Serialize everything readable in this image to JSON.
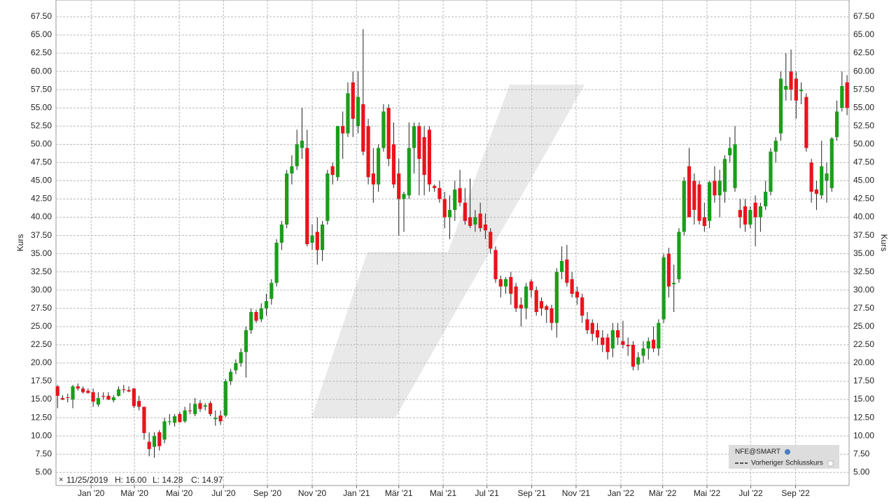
{
  "chart_data": {
    "type": "candlestick",
    "y_label": "Kurs",
    "up_color": "#1a9e1a",
    "down_color": "#e8141c",
    "grid": true,
    "legend": {
      "name": "NFE@SMART",
      "reference": "Vorheriger Schlusskurs",
      "corner": "bottom-right"
    },
    "info": {
      "date": "11/25/2019",
      "high": "H: 16.00",
      "low": "L: 14.28",
      "close": "C: 14.97"
    },
    "xlim": [
      -0.3,
      155.4
    ],
    "xticks": [
      {
        "value": 6.6,
        "label": "Jan '20"
      },
      {
        "value": 15.1,
        "label": "Mär '20"
      },
      {
        "value": 23.9,
        "label": "Mai '20"
      },
      {
        "value": 32.6,
        "label": "Jul '20"
      },
      {
        "value": 41.2,
        "label": "Sep '20"
      },
      {
        "value": 50.0,
        "label": "Nov '20"
      },
      {
        "value": 58.7,
        "label": "Jan '21"
      },
      {
        "value": 67.0,
        "label": "Mär '21"
      },
      {
        "value": 75.7,
        "label": "Mai '21"
      },
      {
        "value": 84.3,
        "label": "Jul '21"
      },
      {
        "value": 93.1,
        "label": "Sep '21"
      },
      {
        "value": 101.8,
        "label": "Nov '21"
      },
      {
        "value": 110.6,
        "label": "Jan '22"
      },
      {
        "value": 118.8,
        "label": "Mär '22"
      },
      {
        "value": 127.5,
        "label": "Mai '22"
      },
      {
        "value": 136.1,
        "label": "Jul '22"
      },
      {
        "value": 144.9,
        "label": "Sep '22"
      }
    ],
    "ylim": [
      3.2,
      69.8
    ],
    "yticks": [
      {
        "value": 5,
        "label": "5.00"
      },
      {
        "value": 7.5,
        "label": "7.50"
      },
      {
        "value": 10,
        "label": "10.00"
      },
      {
        "value": 12.5,
        "label": "12.50"
      },
      {
        "value": 15,
        "label": "15.00"
      },
      {
        "value": 17.5,
        "label": "17.50"
      },
      {
        "value": 20,
        "label": "20.00"
      },
      {
        "value": 22.5,
        "label": "22.50"
      },
      {
        "value": 25,
        "label": "25.00"
      },
      {
        "value": 27.5,
        "label": "27.50"
      },
      {
        "value": 30,
        "label": "30.00"
      },
      {
        "value": 32.5,
        "label": "32.50"
      },
      {
        "value": 35,
        "label": "35.00"
      },
      {
        "value": 37.5,
        "label": "37.50"
      },
      {
        "value": 40,
        "label": "40.00"
      },
      {
        "value": 42.5,
        "label": "42.50"
      },
      {
        "value": 45,
        "label": "45.00"
      },
      {
        "value": 47.5,
        "label": "47.50"
      },
      {
        "value": 50,
        "label": "50.00"
      },
      {
        "value": 52.5,
        "label": "52.50"
      },
      {
        "value": 55,
        "label": "55.00"
      },
      {
        "value": 57.5,
        "label": "57.50"
      },
      {
        "value": 60,
        "label": "60.00"
      },
      {
        "value": 62.5,
        "label": "62.50"
      },
      {
        "value": 65,
        "label": "65.00"
      },
      {
        "value": 67.5,
        "label": "67.50"
      }
    ],
    "ohlc": [
      [
        16.8,
        17.0,
        13.8,
        15.5
      ],
      [
        15.2,
        15.6,
        14.9,
        15.0
      ],
      [
        15.3,
        15.8,
        14.6,
        15.2
      ],
      [
        15.0,
        17.0,
        13.8,
        16.8
      ],
      [
        16.8,
        17.2,
        16.2,
        16.5
      ],
      [
        16.5,
        16.8,
        15.8,
        16.0
      ],
      [
        16.2,
        16.5,
        15.8,
        15.9
      ],
      [
        16.0,
        16.5,
        14.0,
        14.7
      ],
      [
        14.3,
        16.0,
        14.0,
        15.2
      ],
      [
        15.5,
        16.0,
        15.0,
        15.4
      ],
      [
        15.5,
        16.0,
        14.9,
        15.0
      ],
      [
        14.9,
        15.6,
        14.6,
        15.3
      ],
      [
        15.5,
        16.8,
        15.4,
        16.4
      ],
      [
        16.4,
        17.0,
        15.9,
        16.3
      ],
      [
        16.3,
        16.8,
        16.0,
        16.1
      ],
      [
        16.5,
        16.6,
        13.8,
        14.1
      ],
      [
        14.8,
        15.5,
        13.5,
        14.0
      ],
      [
        14.0,
        14.0,
        9.5,
        10.4
      ],
      [
        9.2,
        10.5,
        7.2,
        8.2
      ],
      [
        8.5,
        10.5,
        7.0,
        10.0
      ],
      [
        10.5,
        10.8,
        8.0,
        8.6
      ],
      [
        9.5,
        12.5,
        9.0,
        12.0
      ],
      [
        12.0,
        13.0,
        11.5,
        12.0
      ],
      [
        11.8,
        13.0,
        11.3,
        12.7
      ],
      [
        13.0,
        13.3,
        11.8,
        11.9
      ],
      [
        12.0,
        14.0,
        11.8,
        13.5
      ],
      [
        13.5,
        14.5,
        13.0,
        13.4
      ],
      [
        13.0,
        15.2,
        12.7,
        14.4
      ],
      [
        14.5,
        14.9,
        13.3,
        13.7
      ],
      [
        14.0,
        14.5,
        13.5,
        14.2
      ],
      [
        14.5,
        14.8,
        12.7,
        13.0
      ],
      [
        12.3,
        13.5,
        11.4,
        12.5
      ],
      [
        12.8,
        13.5,
        11.5,
        12.0
      ],
      [
        12.8,
        17.8,
        12.6,
        17.5
      ],
      [
        17.5,
        19.2,
        17.0,
        18.8
      ],
      [
        19.0,
        20.5,
        18.5,
        20.0
      ],
      [
        20.0,
        22.0,
        19.5,
        21.5
      ],
      [
        21.5,
        25.0,
        18.0,
        24.5
      ],
      [
        24.5,
        27.5,
        24.0,
        27.0
      ],
      [
        27.0,
        27.3,
        25.5,
        25.8
      ],
      [
        26.0,
        28.2,
        25.6,
        27.5
      ],
      [
        27.5,
        29.5,
        26.5,
        28.5
      ],
      [
        28.8,
        31.5,
        28.0,
        31.0
      ],
      [
        31.0,
        37.0,
        30.5,
        36.5
      ],
      [
        36.5,
        39.5,
        35.5,
        39.0
      ],
      [
        39.0,
        46.5,
        38.5,
        46.0
      ],
      [
        46.0,
        48.5,
        44.5,
        47.0
      ],
      [
        47.0,
        52.0,
        46.5,
        50.0
      ],
      [
        49.5,
        55.0,
        48.0,
        50.5
      ],
      [
        49.5,
        52.0,
        36.0,
        36.3
      ],
      [
        36.5,
        39.0,
        35.5,
        37.5
      ],
      [
        38.0,
        40.0,
        33.5,
        35.5
      ],
      [
        35.5,
        39.5,
        34.0,
        39.0
      ],
      [
        39.5,
        46.5,
        39.0,
        46.0
      ],
      [
        47.0,
        47.5,
        44.5,
        45.8
      ],
      [
        45.5,
        52.5,
        45.0,
        52.5
      ],
      [
        52.5,
        54.5,
        48.0,
        51.5
      ],
      [
        51.5,
        58.5,
        51.0,
        57.0
      ],
      [
        58.5,
        60.0,
        51.0,
        53.5
      ],
      [
        52.5,
        60.0,
        51.5,
        56.5
      ],
      [
        55.5,
        65.8,
        48.5,
        49.0
      ],
      [
        52.5,
        53.5,
        44.5,
        45.5
      ],
      [
        46.0,
        49.5,
        42.0,
        44.5
      ],
      [
        44.5,
        50.0,
        43.5,
        49.5
      ],
      [
        49.5,
        55.5,
        49.0,
        54.5
      ],
      [
        55.0,
        55.5,
        47.0,
        48.0
      ],
      [
        50.0,
        53.0,
        44.0,
        44.5
      ],
      [
        46.0,
        48.0,
        37.5,
        42.5
      ],
      [
        42.5,
        43.5,
        38.0,
        43.2
      ],
      [
        43.0,
        53.0,
        42.5,
        49.5
      ],
      [
        49.5,
        53.0,
        46.0,
        52.5
      ],
      [
        52.5,
        53.0,
        43.0,
        48.0
      ],
      [
        51.0,
        52.5,
        43.0,
        45.8
      ],
      [
        52.0,
        52.5,
        43.5,
        44.5
      ],
      [
        44.3,
        44.5,
        43.5,
        44.0
      ],
      [
        44.0,
        45.0,
        42.0,
        42.5
      ],
      [
        42.5,
        43.5,
        38.5,
        40.0
      ],
      [
        40.0,
        43.0,
        37.0,
        41.0
      ],
      [
        41.0,
        45.0,
        39.5,
        43.8
      ],
      [
        44.0,
        46.5,
        41.5,
        42.0
      ],
      [
        42.0,
        44.0,
        39.0,
        39.5
      ],
      [
        40.0,
        45.3,
        38.5,
        38.8
      ],
      [
        39.0,
        41.0,
        38.0,
        40.0
      ],
      [
        40.5,
        42.0,
        38.0,
        38.5
      ],
      [
        39.0,
        40.5,
        37.0,
        38.2
      ],
      [
        38.0,
        38.5,
        35.0,
        35.7
      ],
      [
        35.5,
        36.0,
        31.0,
        31.5
      ],
      [
        31.5,
        32.0,
        29.0,
        30.5
      ],
      [
        30.5,
        31.8,
        29.5,
        31.5
      ],
      [
        31.8,
        32.5,
        28.0,
        29.5
      ],
      [
        30.5,
        31.0,
        27.0,
        27.5
      ],
      [
        28.0,
        29.0,
        25.0,
        27.5
      ],
      [
        27.5,
        31.0,
        26.0,
        30.5
      ],
      [
        31.2,
        31.5,
        29.0,
        30.0
      ],
      [
        30.0,
        30.5,
        26.5,
        27.0
      ],
      [
        28.5,
        29.0,
        26.5,
        27.5
      ],
      [
        27.8,
        28.0,
        25.5,
        27.3
      ],
      [
        27.5,
        28.0,
        24.5,
        25.5
      ],
      [
        25.5,
        33.0,
        23.5,
        32.5
      ],
      [
        32.5,
        36.0,
        31.5,
        34.0
      ],
      [
        34.2,
        36.2,
        30.5,
        31.0
      ],
      [
        31.5,
        32.5,
        29.0,
        29.5
      ],
      [
        29.8,
        30.5,
        28.0,
        29.0
      ],
      [
        29.0,
        29.5,
        25.5,
        26.5
      ],
      [
        26.0,
        27.0,
        24.0,
        24.5
      ],
      [
        25.5,
        26.0,
        23.0,
        24.0
      ],
      [
        24.5,
        25.5,
        22.5,
        23.5
      ],
      [
        23.5,
        24.5,
        21.5,
        22.5
      ],
      [
        23.5,
        24.0,
        20.5,
        21.5
      ],
      [
        22.0,
        25.5,
        20.8,
        24.5
      ],
      [
        24.5,
        25.5,
        22.5,
        23.5
      ],
      [
        23.0,
        25.8,
        22.0,
        22.5
      ],
      [
        22.5,
        23.5,
        21.0,
        22.3
      ],
      [
        22.5,
        23.0,
        19.0,
        19.5
      ],
      [
        19.8,
        21.5,
        19.0,
        20.8
      ],
      [
        21.0,
        23.0,
        20.0,
        22.0
      ],
      [
        22.0,
        23.5,
        20.5,
        23.0
      ],
      [
        23.2,
        25.0,
        21.5,
        22.0
      ],
      [
        22.0,
        26.0,
        21.0,
        25.5
      ],
      [
        26.0,
        35.0,
        25.5,
        34.5
      ],
      [
        35.0,
        35.8,
        29.0,
        30.5
      ],
      [
        30.8,
        33.5,
        27.0,
        31.0
      ],
      [
        31.5,
        38.5,
        31.0,
        38.0
      ],
      [
        38.0,
        45.5,
        37.5,
        45.0
      ],
      [
        47.0,
        49.5,
        40.0,
        40.0
      ],
      [
        45.0,
        46.0,
        39.0,
        41.0
      ],
      [
        44.5,
        45.0,
        39.0,
        39.5
      ],
      [
        40.0,
        42.0,
        38.0,
        38.8
      ],
      [
        39.5,
        45.0,
        38.5,
        44.8
      ],
      [
        45.0,
        47.0,
        42.0,
        43.0
      ],
      [
        43.0,
        46.5,
        40.0,
        45.0
      ],
      [
        43.5,
        48.5,
        42.0,
        48.0
      ],
      [
        48.5,
        51.0,
        47.5,
        49.5
      ],
      [
        44.0,
        52.5,
        43.5,
        50.0
      ],
      [
        41.0,
        42.5,
        38.5,
        40.0
      ],
      [
        41.5,
        42.5,
        38.0,
        39.0
      ],
      [
        39.0,
        41.5,
        38.5,
        41.0
      ],
      [
        42.0,
        43.0,
        36.0,
        40.0
      ],
      [
        40.0,
        42.0,
        38.0,
        41.5
      ],
      [
        41.5,
        45.0,
        41.0,
        43.5
      ],
      [
        43.5,
        49.5,
        43.0,
        49.0
      ],
      [
        49.0,
        51.0,
        47.5,
        50.5
      ],
      [
        51.5,
        60.0,
        50.5,
        59.0
      ],
      [
        57.5,
        62.5,
        56.0,
        58.0
      ],
      [
        60.0,
        63.0,
        56.0,
        57.5
      ],
      [
        59.0,
        60.0,
        53.5,
        56.0
      ],
      [
        57.3,
        58.5,
        55.5,
        57.5
      ],
      [
        56.5,
        57.0,
        49.0,
        49.5
      ],
      [
        47.5,
        48.0,
        42.0,
        43.5
      ],
      [
        43.8,
        45.0,
        41.0,
        43.2
      ],
      [
        43.0,
        50.5,
        42.5,
        47.0
      ],
      [
        45.0,
        47.5,
        42.0,
        46.0
      ],
      [
        44.0,
        51.0,
        43.5,
        50.8
      ],
      [
        51.0,
        56.0,
        50.5,
        54.5
      ],
      [
        55.0,
        60.0,
        54.5,
        58.0
      ],
      [
        58.5,
        59.5,
        54.0,
        55.0
      ]
    ]
  }
}
